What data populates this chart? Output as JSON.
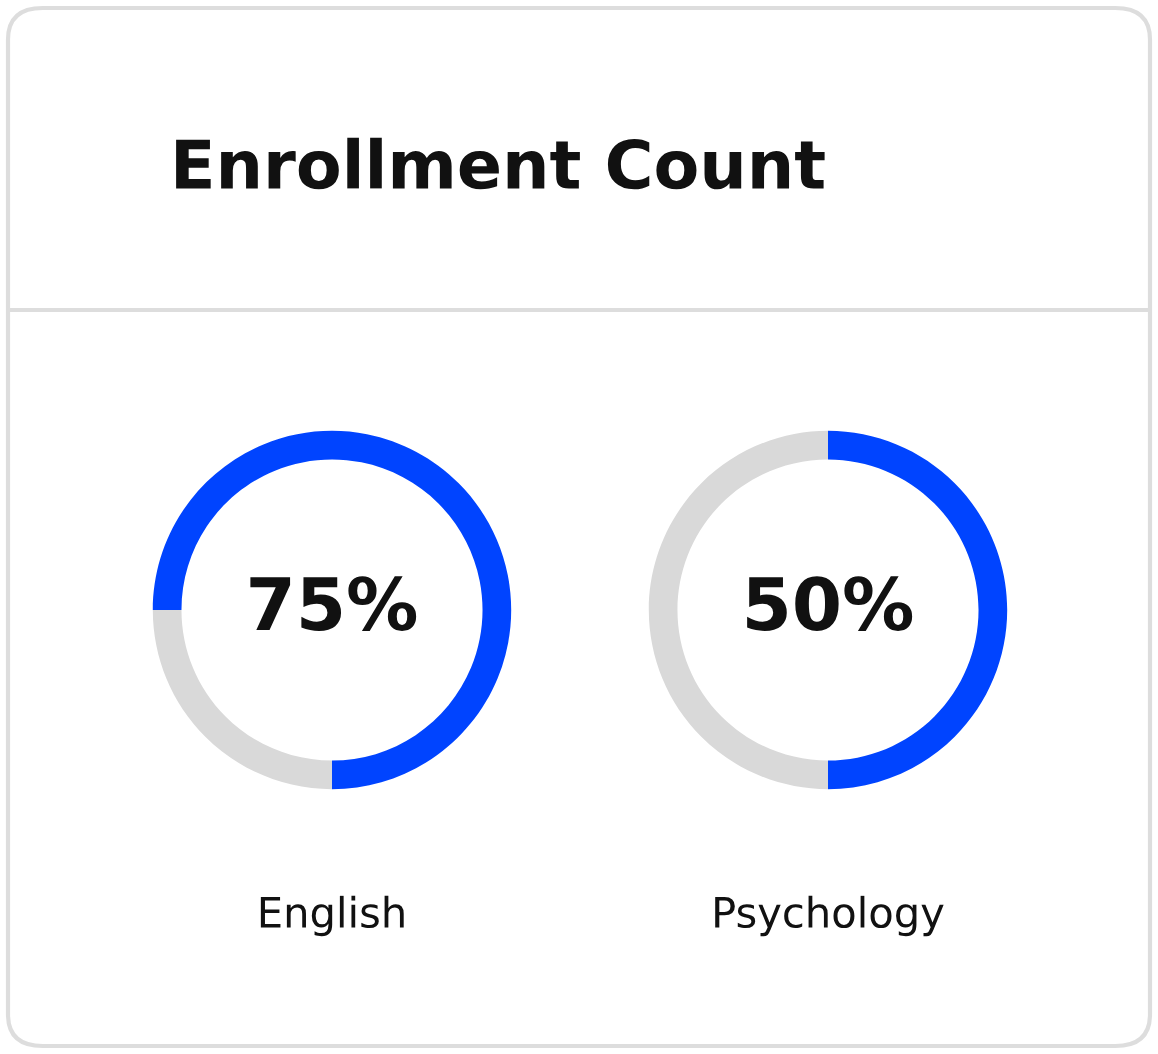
{
  "chart_data": [
    {
      "type": "other",
      "title": "Enrollment Count"
    },
    {
      "type": "donut",
      "xlabel": "English",
      "categories": [
        null,
        null
      ],
      "values": [
        75,
        25
      ],
      "colors": [
        "#0044ff",
        "#d9d9d9"
      ],
      "value_labels": [
        "75%",
        null
      ]
    },
    {
      "type": "donut",
      "xlabel": "Psychology",
      "categories": [
        null,
        null
      ],
      "values": [
        50,
        50
      ],
      "colors": [
        "#0044ff",
        "#d9d9d9"
      ],
      "value_labels": [
        "50%",
        null
      ]
    }
  ]
}
